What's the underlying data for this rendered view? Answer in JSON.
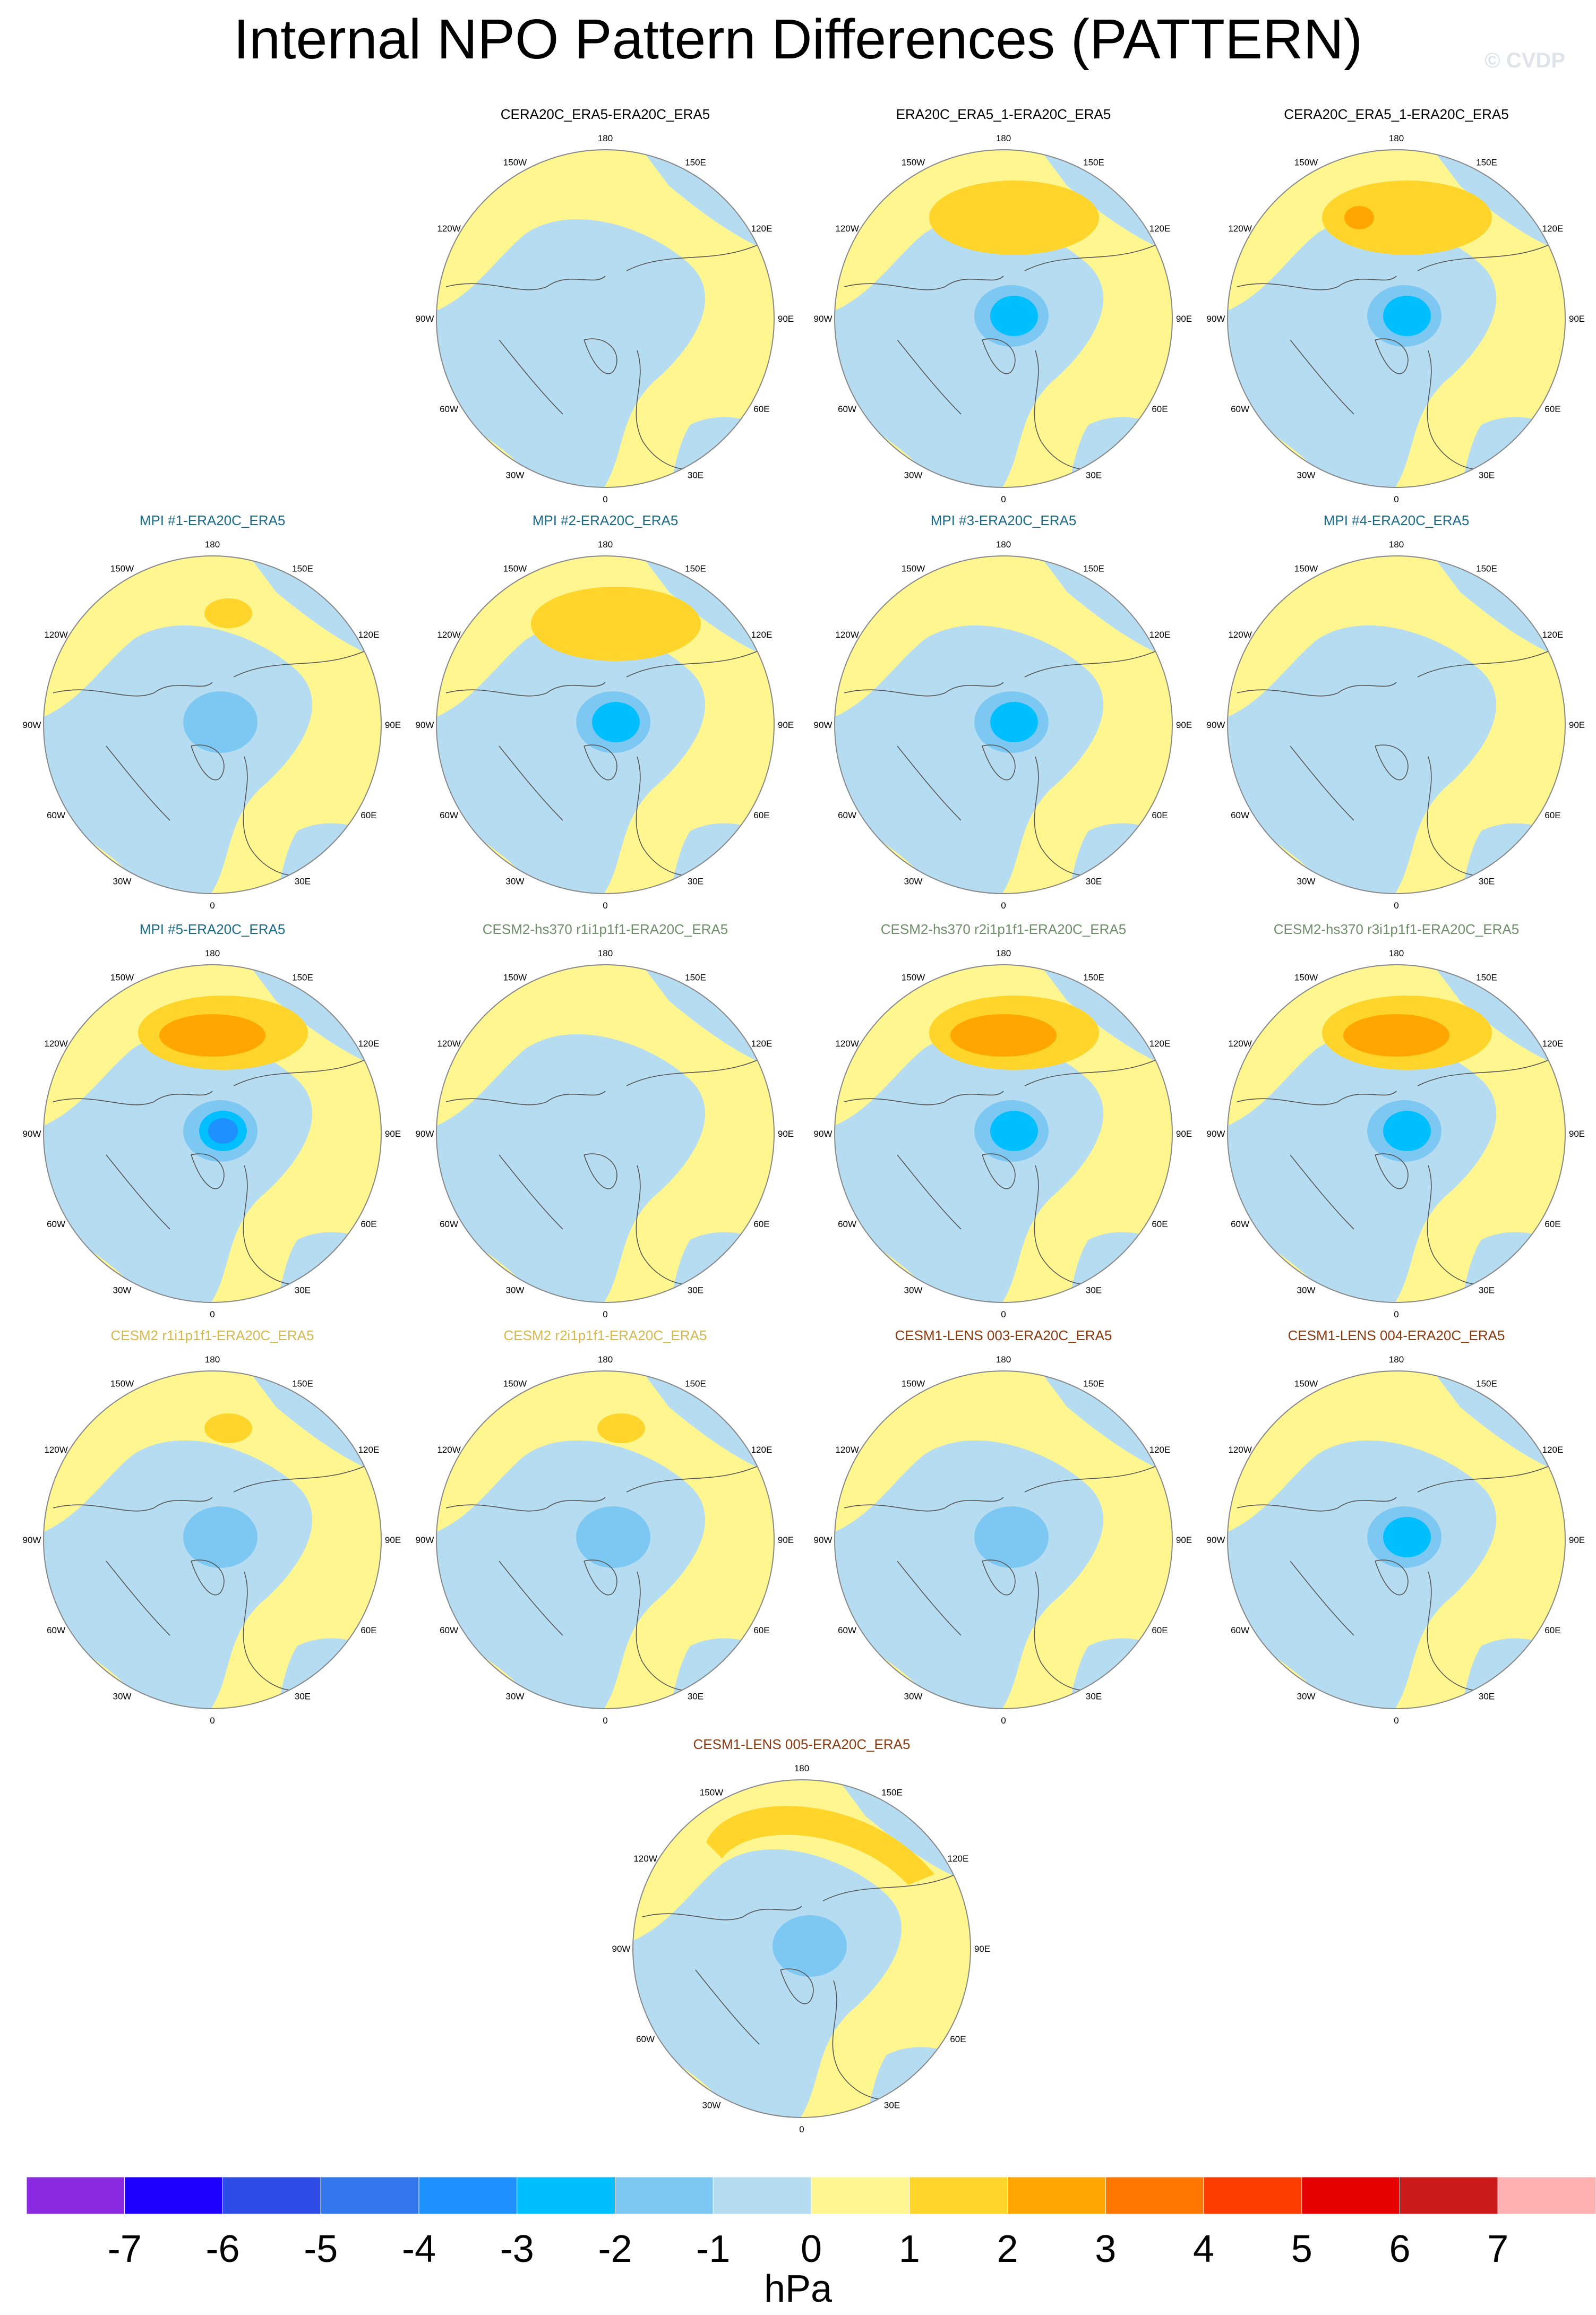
{
  "title": "Internal NPO Pattern Differences (PATTERN)",
  "credit": "© CVDP",
  "colors": {
    "positive_1": "#fff68f",
    "positive_2": "#ffd52b",
    "positive_3": "#ffa600",
    "negative_1": "#b5dcf1",
    "negative_2": "#7dc7f3",
    "negative_3": "#00bfff",
    "negative_4": "#1e90ff",
    "coast": "#555555",
    "rim": "#888888"
  },
  "panels": [
    {
      "title": "CERA20C_ERA5-ERA20C_ERA5",
      "color": "#000000",
      "features": []
    },
    {
      "title": "ERA20C_ERA5_1-ERA20C_ERA5",
      "color": "#000000",
      "features": [
        "pac2",
        "low3"
      ]
    },
    {
      "title": "CERA20C_ERA5_1-ERA20C_ERA5",
      "color": "#000000",
      "features": [
        "pac2",
        "pac3small",
        "low3"
      ]
    },
    {
      "title": "MPI #1-ERA20C_ERA5",
      "color": "#1a6b8a",
      "features": [
        "pacsmall",
        "low2"
      ]
    },
    {
      "title": "MPI #2-ERA20C_ERA5",
      "color": "#1a6b8a",
      "features": [
        "pac2",
        "low3"
      ]
    },
    {
      "title": "MPI #3-ERA20C_ERA5",
      "color": "#1a6b8a",
      "features": [
        "low3"
      ]
    },
    {
      "title": "MPI #4-ERA20C_ERA5",
      "color": "#1a6b8a",
      "features": [
        "low1"
      ]
    },
    {
      "title": "MPI #5-ERA20C_ERA5",
      "color": "#1a6b8a",
      "features": [
        "pac2",
        "pac3",
        "low4"
      ]
    },
    {
      "title": "CESM2-hs370 r1i1p1f1-ERA20C_ERA5",
      "color": "#6f8f6a",
      "features": []
    },
    {
      "title": "CESM2-hs370 r2i1p1f1-ERA20C_ERA5",
      "color": "#6f8f6a",
      "features": [
        "pac2",
        "pac3",
        "low3"
      ]
    },
    {
      "title": "CESM2-hs370 r3i1p1f1-ERA20C_ERA5",
      "color": "#6f8f6a",
      "features": [
        "pac2",
        "pac3",
        "low3"
      ]
    },
    {
      "title": "CESM2 r1i1p1f1-ERA20C_ERA5",
      "color": "#d6b84c",
      "features": [
        "pacsmall",
        "low2"
      ]
    },
    {
      "title": "CESM2 r2i1p1f1-ERA20C_ERA5",
      "color": "#d6b84c",
      "features": [
        "pacsmall",
        "low2"
      ]
    },
    {
      "title": "CESM1-LENS 003-ERA20C_ERA5",
      "color": "#8b3a10",
      "features": [
        "low2"
      ]
    },
    {
      "title": "CESM1-LENS 004-ERA20C_ERA5",
      "color": "#8b3a10",
      "features": [
        "low3"
      ]
    },
    {
      "title": "CESM1-LENS 005-ERA20C_ERA5",
      "color": "#8b3a10",
      "features": [
        "pacarc",
        "low2"
      ]
    }
  ],
  "longitude_labels": [
    "180",
    "150E",
    "120E",
    "90E",
    "60E",
    "30E",
    "0",
    "30W",
    "60W",
    "90W",
    "120W",
    "150W"
  ],
  "colorbar": {
    "units": "hPa",
    "tick_labels": [
      "-7",
      "-6",
      "-5",
      "-4",
      "-3",
      "-2",
      "-1",
      "0",
      "1",
      "2",
      "3",
      "4",
      "5",
      "6",
      "7"
    ],
    "colors": [
      "#8a2be2",
      "#1e00ff",
      "#2d4de6",
      "#3377ee",
      "#1e90ff",
      "#00bfff",
      "#7dc7f3",
      "#b5dcf1",
      "#fff68f",
      "#ffd52b",
      "#ffa600",
      "#ff7700",
      "#ff3c00",
      "#e60000",
      "#cc1a1a",
      "#ffb0b0"
    ]
  }
}
